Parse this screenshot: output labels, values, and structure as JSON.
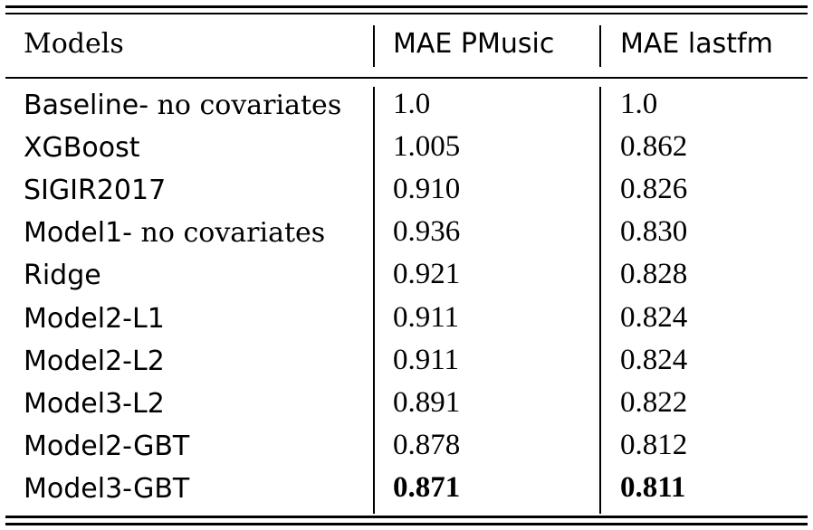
{
  "table": {
    "headers": {
      "models": "Models",
      "mae_pmusic": "MAE PMusic",
      "mae_lastfm": "MAE lastfm"
    },
    "rows": [
      {
        "model_sans": "Baseline-",
        "model_serif": " no covariates",
        "pmusic": "1.0",
        "lastfm": "1.0",
        "bold": false
      },
      {
        "model_sans": "XGBoost",
        "model_serif": "",
        "pmusic": "1.005",
        "lastfm": "0.862",
        "bold": false
      },
      {
        "model_sans": "SIGIR2017",
        "model_serif": "",
        "pmusic": "0.910",
        "lastfm": "0.826",
        "bold": false
      },
      {
        "model_sans": "Model1-",
        "model_serif": " no covariates",
        "pmusic": "0.936",
        "lastfm": "0.830",
        "bold": false
      },
      {
        "model_sans": "Ridge",
        "model_serif": "",
        "pmusic": "0.921",
        "lastfm": "0.828",
        "bold": false
      },
      {
        "model_sans": "Model2-L1",
        "model_serif": "",
        "pmusic": "0.911",
        "lastfm": "0.824",
        "bold": false
      },
      {
        "model_sans": "Model2-L2",
        "model_serif": "",
        "pmusic": "0.911",
        "lastfm": "0.824",
        "bold": false
      },
      {
        "model_sans": "Model3-L2",
        "model_serif": "",
        "pmusic": "0.891",
        "lastfm": "0.822",
        "bold": false
      },
      {
        "model_sans": "Model2-GBT",
        "model_serif": "",
        "pmusic": "0.878",
        "lastfm": "0.812",
        "bold": false
      },
      {
        "model_sans": "Model3-GBT",
        "model_serif": "",
        "pmusic": "0.871",
        "lastfm": "0.811",
        "bold": true
      }
    ]
  }
}
